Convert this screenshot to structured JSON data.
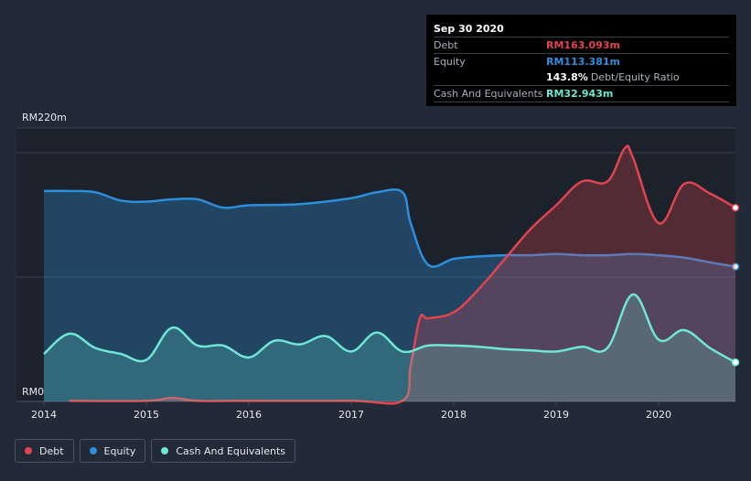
{
  "chart_data": {
    "type": "area",
    "y_unit_labels": {
      "top": "RM220m",
      "bottom": "RM0"
    },
    "ylim": [
      0,
      220
    ],
    "xlim": [
      2014.0,
      2020.75
    ],
    "x_ticks": [
      "2014",
      "2015",
      "2016",
      "2017",
      "2018",
      "2019",
      "2020"
    ],
    "series": [
      {
        "name": "Debt",
        "color": "#e0454f",
        "points": [
          [
            2014.25,
            0.5
          ],
          [
            2015.0,
            0.5
          ],
          [
            2015.25,
            3
          ],
          [
            2015.5,
            0.5
          ],
          [
            2016.0,
            0.5
          ],
          [
            2017.0,
            0.5
          ],
          [
            2017.5,
            0.5
          ],
          [
            2017.58,
            30
          ],
          [
            2017.67,
            70
          ],
          [
            2017.75,
            70
          ],
          [
            2018.0,
            75
          ],
          [
            2018.25,
            95
          ],
          [
            2018.5,
            120
          ],
          [
            2018.75,
            145
          ],
          [
            2019.0,
            165
          ],
          [
            2019.25,
            185
          ],
          [
            2019.5,
            185
          ],
          [
            2019.67,
            213
          ],
          [
            2019.75,
            205
          ],
          [
            2020.0,
            150
          ],
          [
            2020.25,
            183
          ],
          [
            2020.5,
            175
          ],
          [
            2020.75,
            163
          ]
        ]
      },
      {
        "name": "Equity",
        "color": "#2d8fdb",
        "points": [
          [
            2014.0,
            177
          ],
          [
            2014.25,
            177
          ],
          [
            2014.5,
            176
          ],
          [
            2014.75,
            169
          ],
          [
            2015.0,
            168
          ],
          [
            2015.25,
            170
          ],
          [
            2015.5,
            170
          ],
          [
            2015.75,
            163
          ],
          [
            2016.0,
            165
          ],
          [
            2016.5,
            166
          ],
          [
            2017.0,
            171
          ],
          [
            2017.25,
            176
          ],
          [
            2017.5,
            176
          ],
          [
            2017.58,
            150
          ],
          [
            2017.75,
            115
          ],
          [
            2018.0,
            120
          ],
          [
            2018.25,
            122
          ],
          [
            2018.5,
            123
          ],
          [
            2018.75,
            123
          ],
          [
            2019.0,
            124
          ],
          [
            2019.25,
            123
          ],
          [
            2019.5,
            123
          ],
          [
            2019.75,
            124
          ],
          [
            2020.0,
            123
          ],
          [
            2020.25,
            121
          ],
          [
            2020.5,
            117
          ],
          [
            2020.75,
            113.4
          ]
        ]
      },
      {
        "name": "Cash And Equivalents",
        "color": "#6ee7d3",
        "points": [
          [
            2014.0,
            40
          ],
          [
            2014.25,
            57
          ],
          [
            2014.5,
            45
          ],
          [
            2014.75,
            40
          ],
          [
            2015.0,
            35
          ],
          [
            2015.25,
            62
          ],
          [
            2015.5,
            47
          ],
          [
            2015.75,
            47
          ],
          [
            2016.0,
            37
          ],
          [
            2016.25,
            51
          ],
          [
            2016.5,
            48
          ],
          [
            2016.75,
            55
          ],
          [
            2017.0,
            42
          ],
          [
            2017.25,
            58
          ],
          [
            2017.5,
            42
          ],
          [
            2017.75,
            47
          ],
          [
            2018.0,
            47
          ],
          [
            2018.25,
            46
          ],
          [
            2018.5,
            44
          ],
          [
            2018.75,
            43
          ],
          [
            2019.0,
            42
          ],
          [
            2019.25,
            46
          ],
          [
            2019.5,
            45
          ],
          [
            2019.75,
            90
          ],
          [
            2020.0,
            52
          ],
          [
            2020.25,
            60
          ],
          [
            2020.5,
            45
          ],
          [
            2020.75,
            32.9
          ]
        ]
      }
    ],
    "tooltip": {
      "date": "Sep 30 2020",
      "rows": [
        {
          "label": "Debt",
          "value": "RM163.093m",
          "color": "#e0454f"
        },
        {
          "label": "Equity",
          "value": "RM113.381m",
          "color": "#2d8fdb"
        },
        {
          "label": "",
          "value": "143.8%",
          "sub": "Debt/Equity Ratio",
          "color": "#ffffff"
        },
        {
          "label": "Cash And Equivalents",
          "value": "RM32.943m",
          "color": "#6ee7d3"
        }
      ]
    },
    "legend": [
      "Debt",
      "Equity",
      "Cash And Equivalents"
    ]
  }
}
